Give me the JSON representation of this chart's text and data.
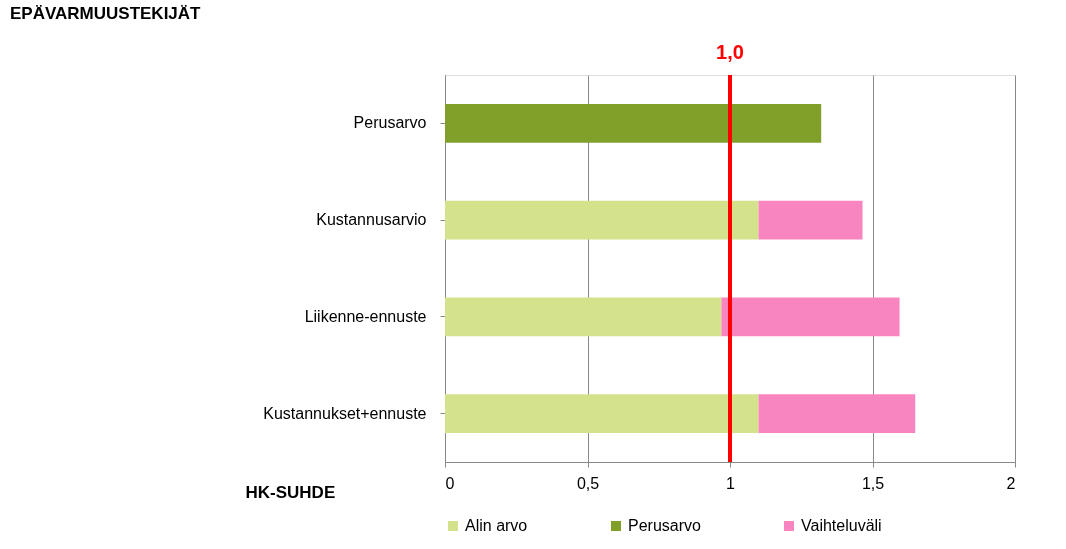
{
  "chart_data": {
    "type": "bar",
    "orientation": "horizontal",
    "stacked": true,
    "title": "EPÄVARMUUSTEKIJÄT",
    "xlabel": "HK-SUHDE",
    "categories": [
      "Perusarvo",
      "Kustannusarvio",
      "Liikenne-ennuste",
      "Kustannukset+ennuste"
    ],
    "series": [
      {
        "name": "Alin arvo",
        "color": "#d4e38b",
        "values": [
          null,
          1.1,
          0.97,
          1.1
        ]
      },
      {
        "name": "Perusarvo",
        "color": "#80a02a",
        "values": [
          1.32,
          null,
          null,
          null
        ]
      },
      {
        "name": "Vaihteluväli",
        "color": "#f985c0",
        "values": [
          null,
          0.365,
          0.625,
          0.55
        ]
      }
    ],
    "xlim": [
      0,
      2
    ],
    "xticks": [
      0,
      {
        "value": 0.5,
        "label": "0,5"
      },
      1,
      {
        "value": 1.5,
        "label": "1,5"
      },
      2
    ],
    "ref_lines": [
      {
        "axis": "x",
        "value": 1,
        "label": "1,0",
        "color": "#ff0000"
      }
    ],
    "grid": "x",
    "legend": "bottom"
  }
}
